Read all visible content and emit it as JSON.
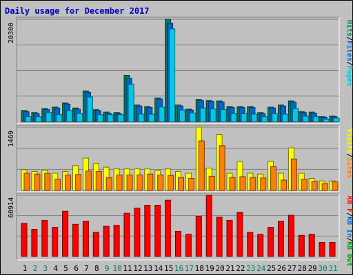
{
  "colors": {
    "background": "#c0c0c0",
    "panel": "#c0c0c0",
    "title": "#0000c0",
    "hits": "#00805c",
    "files": "#0066cc",
    "pages": "#00c8e8",
    "visits": "#ffff00",
    "sites": "#ff8000",
    "kb_f": "#ff0000",
    "kb_in": "#0066cc",
    "kb_out": "#00a000",
    "day_weekday": "#000000",
    "day_weekend": "#00805c"
  },
  "chart_data": {
    "type": "bar",
    "title": "Daily usage for December 2017",
    "categories": [
      "1",
      "2",
      "3",
      "4",
      "5",
      "6",
      "7",
      "8",
      "9",
      "10",
      "11",
      "12",
      "13",
      "14",
      "15",
      "16",
      "17",
      "18",
      "19",
      "20",
      "21",
      "22",
      "23",
      "24",
      "25",
      "26",
      "27",
      "28",
      "29",
      "30",
      "31"
    ],
    "weekend_days": [
      "2",
      "3",
      "9",
      "10",
      "16",
      "17",
      "23",
      "24",
      "30",
      "31"
    ],
    "panels": [
      {
        "id": "hits-files-pages",
        "max_label": "20300",
        "ylim": [
          0,
          20300
        ],
        "right_labels": [
          {
            "text": "Hits",
            "color": "#00805c"
          },
          {
            "text": "Files",
            "color": "#0066cc"
          },
          {
            "text": "Pages",
            "color": "#00c8e8"
          }
        ],
        "series": [
          {
            "name": "Hits",
            "color": "#00805c",
            "values": [
              2200,
              1800,
              2600,
              2900,
              3700,
              2700,
              6100,
              2400,
              1900,
              1800,
              9200,
              3300,
              3000,
              4700,
              20300,
              3300,
              2500,
              4400,
              4200,
              4100,
              3000,
              3000,
              3000,
              1800,
              2900,
              3300,
              4100,
              2000,
              1900,
              1000,
              1100
            ]
          },
          {
            "name": "Files",
            "color": "#0066cc",
            "values": [
              2000,
              1600,
              2400,
              2700,
              3500,
              2500,
              5800,
              2200,
              1700,
              1600,
              8600,
              3100,
              2800,
              4500,
              19500,
              3100,
              2300,
              4200,
              4000,
              3900,
              2800,
              2800,
              2800,
              1600,
              2700,
              3100,
              3900,
              1800,
              1700,
              900,
              1000
            ]
          },
          {
            "name": "Pages",
            "color": "#00c8e8",
            "values": [
              1000,
              1000,
              1800,
              1400,
              2200,
              1600,
              4900,
              1400,
              1400,
              1400,
              7400,
              1500,
              1500,
              2900,
              18400,
              2300,
              1700,
              2700,
              2500,
              2400,
              1600,
              1600,
              1500,
              1000,
              1600,
              1500,
              2600,
              1100,
              1000,
              500,
              700
            ]
          }
        ]
      },
      {
        "id": "visits-sites",
        "max_label": "1469",
        "ylim": [
          0,
          1469
        ],
        "right_labels": [
          {
            "text": "Visits",
            "color": "#ffff00"
          },
          {
            "text": "Sites",
            "color": "#ff8000"
          }
        ],
        "series": [
          {
            "name": "Visits",
            "color": "#ffff00",
            "values": [
              480,
              440,
              470,
              400,
              440,
              580,
              750,
              630,
              540,
              500,
              500,
              500,
              500,
              460,
              500,
              440,
              400,
              1470,
              520,
              1300,
              400,
              670,
              400,
              380,
              680,
              400,
              990,
              400,
              280,
              220,
              220
            ]
          },
          {
            "name": "Sites",
            "color": "#ff8000",
            "values": [
              400,
              380,
              400,
              260,
              360,
              370,
              450,
              440,
              300,
              360,
              360,
              360,
              380,
              360,
              350,
              300,
              280,
              1150,
              330,
              1040,
              300,
              320,
              300,
              290,
              550,
              240,
              730,
              260,
              210,
              160,
              200
            ]
          }
        ]
      },
      {
        "id": "kbytes",
        "max_label": "60914",
        "ylim": [
          0,
          60914
        ],
        "right_labels": [
          {
            "text": "KB F",
            "color": "#ff0000"
          },
          {
            "text": "KB In",
            "color": "#0066cc"
          },
          {
            "text": "KB Out",
            "color": "#00a000"
          }
        ],
        "series": [
          {
            "name": "KB F",
            "color": "#ff0000",
            "values": [
              33000,
              27000,
              36000,
              29000,
              45000,
              32000,
              35000,
              24000,
              30000,
              31000,
              43000,
              48000,
              51000,
              51000,
              56000,
              25000,
              22000,
              40000,
              60914,
              39000,
              36000,
              44000,
              24000,
              22000,
              29000,
              35000,
              41000,
              21000,
              22000,
              14000,
              14000
            ]
          }
        ]
      }
    ]
  }
}
